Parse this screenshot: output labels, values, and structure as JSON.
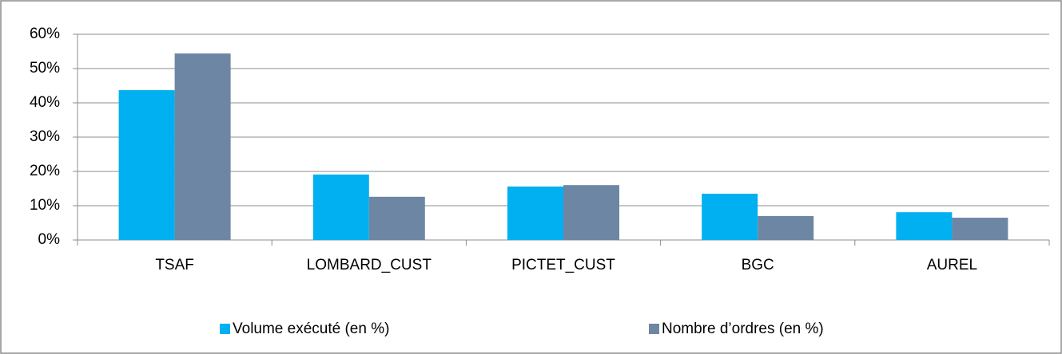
{
  "chart_data": {
    "type": "bar",
    "categories": [
      "TSAF",
      "LOMBARD_CUST",
      "PICTET_CUST",
      "BGC",
      "AUREL"
    ],
    "series": [
      {
        "name": "Volume exécuté (en %)",
        "color": "#00b0f0",
        "values": [
          43.7,
          19.1,
          15.6,
          13.5,
          8.1
        ]
      },
      {
        "name": "Nombre d’ordres (en %)",
        "color": "#6d86a4",
        "values": [
          54.4,
          12.6,
          16.0,
          7.0,
          6.5
        ]
      }
    ],
    "ylim": [
      0,
      60
    ],
    "yticks": [
      {
        "value": 0,
        "label": "0%"
      },
      {
        "value": 10,
        "label": "10%"
      },
      {
        "value": 20,
        "label": "20%"
      },
      {
        "value": 30,
        "label": "30%"
      },
      {
        "value": 40,
        "label": "40%"
      },
      {
        "value": 50,
        "label": "50%"
      },
      {
        "value": 60,
        "label": "60%"
      }
    ],
    "grid": true,
    "legend": "bottom"
  }
}
